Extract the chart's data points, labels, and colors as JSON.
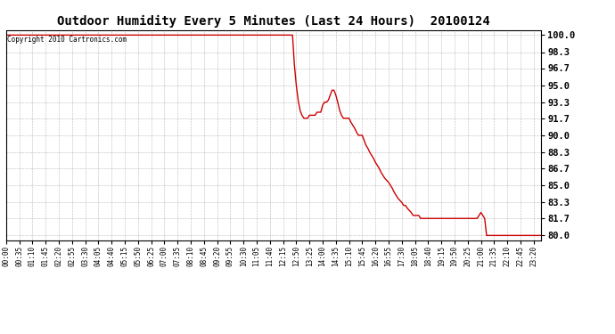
{
  "title": "Outdoor Humidity Every 5 Minutes (Last 24 Hours)  20100124",
  "copyright_text": "Copyright 2010 Cartronics.com",
  "line_color": "#cc0000",
  "background_color": "#ffffff",
  "grid_color": "#888888",
  "ylim": [
    79.5,
    100.5
  ],
  "yticks": [
    80.0,
    81.7,
    83.3,
    85.0,
    86.7,
    88.3,
    90.0,
    91.7,
    93.3,
    95.0,
    96.7,
    98.3,
    100.0
  ],
  "ytick_labels": [
    "80.0",
    "81.7",
    "83.3",
    "85.0",
    "86.7",
    "88.3",
    "90.0",
    "91.7",
    "93.3",
    "95.0",
    "96.7",
    "98.3",
    "100.0"
  ],
  "xtick_step": 7,
  "humidity_values": [
    100.0,
    100.0,
    100.0,
    100.0,
    100.0,
    100.0,
    100.0,
    100.0,
    100.0,
    100.0,
    100.0,
    100.0,
    100.0,
    100.0,
    100.0,
    100.0,
    100.0,
    100.0,
    100.0,
    100.0,
    100.0,
    100.0,
    100.0,
    100.0,
    100.0,
    100.0,
    100.0,
    100.0,
    100.0,
    100.0,
    100.0,
    100.0,
    100.0,
    100.0,
    100.0,
    100.0,
    100.0,
    100.0,
    100.0,
    100.0,
    100.0,
    100.0,
    100.0,
    100.0,
    100.0,
    100.0,
    100.0,
    100.0,
    100.0,
    100.0,
    100.0,
    100.0,
    100.0,
    100.0,
    100.0,
    100.0,
    100.0,
    100.0,
    100.0,
    100.0,
    100.0,
    100.0,
    100.0,
    100.0,
    100.0,
    100.0,
    100.0,
    100.0,
    100.0,
    100.0,
    100.0,
    100.0,
    100.0,
    100.0,
    100.0,
    100.0,
    100.0,
    100.0,
    100.0,
    100.0,
    100.0,
    100.0,
    100.0,
    100.0,
    100.0,
    100.0,
    100.0,
    100.0,
    100.0,
    100.0,
    100.0,
    100.0,
    100.0,
    100.0,
    100.0,
    100.0,
    100.0,
    100.0,
    100.0,
    100.0,
    100.0,
    100.0,
    100.0,
    100.0,
    100.0,
    100.0,
    100.0,
    100.0,
    100.0,
    100.0,
    100.0,
    100.0,
    100.0,
    100.0,
    100.0,
    100.0,
    100.0,
    100.0,
    100.0,
    100.0,
    100.0,
    100.0,
    100.0,
    100.0,
    100.0,
    100.0,
    100.0,
    100.0,
    100.0,
    100.0,
    100.0,
    100.0,
    100.0,
    100.0,
    100.0,
    100.0,
    100.0,
    100.0,
    100.0,
    100.0,
    100.0,
    100.0,
    100.0,
    100.0,
    100.0,
    100.0,
    100.0,
    100.0,
    100.0,
    100.0,
    100.0,
    100.0,
    100.0,
    97.0,
    95.0,
    93.5,
    92.5,
    92.0,
    91.7,
    91.7,
    91.7,
    92.0,
    92.0,
    92.0,
    92.0,
    92.3,
    92.3,
    92.3,
    93.0,
    93.3,
    93.3,
    93.5,
    94.0,
    94.5,
    94.5,
    94.0,
    93.3,
    92.5,
    92.0,
    91.7,
    91.7,
    91.7,
    91.7,
    91.3,
    91.0,
    90.7,
    90.3,
    90.0,
    90.0,
    90.0,
    89.5,
    89.0,
    88.7,
    88.3,
    88.0,
    87.7,
    87.3,
    87.0,
    86.7,
    86.3,
    86.0,
    85.7,
    85.5,
    85.3,
    85.0,
    84.7,
    84.3,
    84.0,
    83.7,
    83.5,
    83.3,
    83.0,
    83.0,
    82.7,
    82.5,
    82.3,
    82.0,
    82.0,
    82.0,
    82.0,
    81.7,
    81.7,
    81.7,
    81.7,
    81.7,
    81.7,
    81.7,
    81.7,
    81.7,
    81.7,
    81.7,
    81.7,
    81.7,
    81.7,
    81.7,
    81.7,
    81.7,
    81.7,
    81.7,
    81.7,
    81.7,
    81.7,
    81.7,
    81.7,
    81.7,
    81.7,
    81.7,
    81.7,
    81.7,
    81.7,
    81.7,
    82.0,
    82.3,
    82.0,
    81.7,
    80.0,
    80.0,
    80.0,
    80.0,
    80.0,
    80.0,
    80.0,
    80.0,
    80.0,
    80.0,
    80.0,
    80.0,
    80.0,
    80.0,
    80.0,
    80.0,
    80.0,
    80.0,
    80.0,
    80.0,
    80.0,
    80.0,
    80.0,
    80.0,
    80.0,
    80.0,
    80.0,
    80.0,
    80.0,
    80.0
  ]
}
